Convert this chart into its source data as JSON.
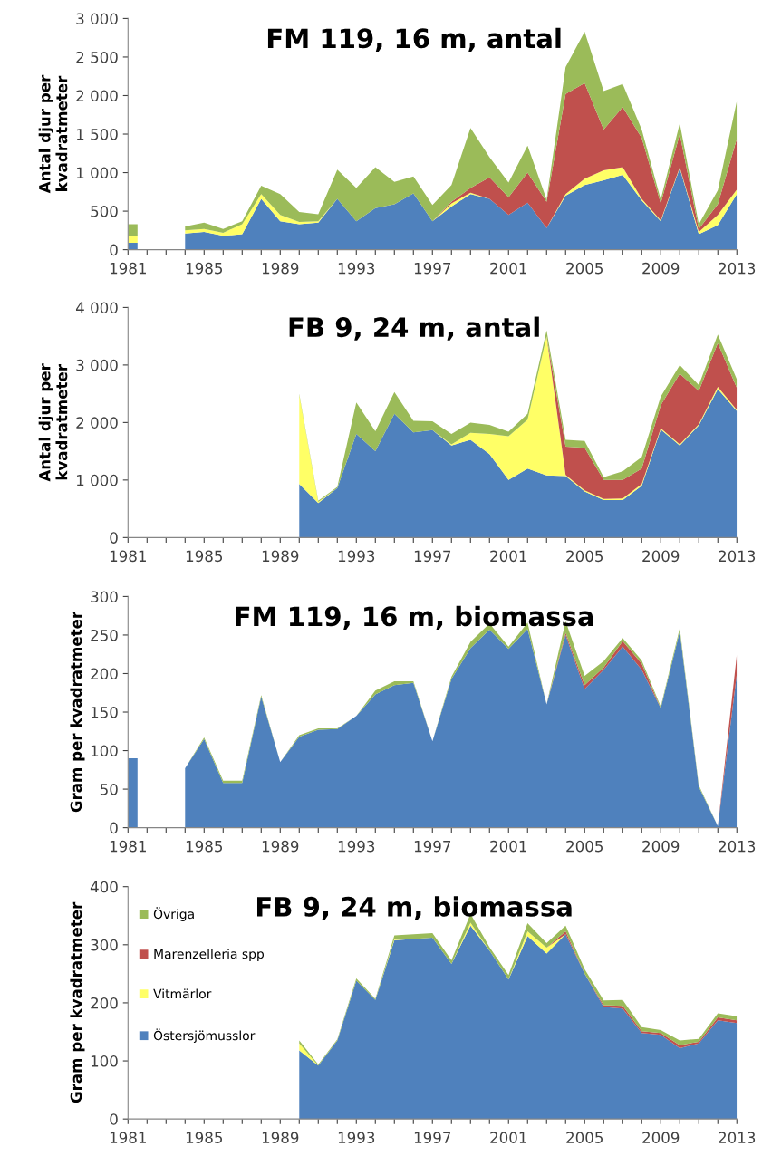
{
  "chart_data": [
    {
      "type": "area",
      "stacked": true,
      "title": "FM 119, 16 m, antal",
      "ylabel": "Antal djur per\nkvadratmeter",
      "grid": false,
      "legend": false,
      "x": [
        1981,
        1982,
        1983,
        1984,
        1985,
        1986,
        1987,
        1988,
        1989,
        1990,
        1991,
        1992,
        1993,
        1994,
        1995,
        1996,
        1997,
        1998,
        1999,
        2000,
        2001,
        2002,
        2003,
        2004,
        2005,
        2006,
        2007,
        2008,
        2009,
        2010,
        2011,
        2012,
        2013
      ],
      "xlim": [
        1981,
        2013
      ],
      "xticks": [
        1981,
        {
          "value": 1982,
          "label": null
        },
        {
          "value": 1983,
          "label": null
        },
        {
          "value": 1984,
          "label": null
        },
        1985,
        {
          "value": 1986,
          "label": null
        },
        {
          "value": 1987,
          "label": null
        },
        {
          "value": 1988,
          "label": null
        },
        1989,
        {
          "value": 1990,
          "label": null
        },
        {
          "value": 1991,
          "label": null
        },
        {
          "value": 1992,
          "label": null
        },
        1993,
        {
          "value": 1994,
          "label": null
        },
        {
          "value": 1995,
          "label": null
        },
        {
          "value": 1996,
          "label": null
        },
        1997,
        {
          "value": 1998,
          "label": null
        },
        {
          "value": 1999,
          "label": null
        },
        {
          "value": 2000,
          "label": null
        },
        2001,
        {
          "value": 2002,
          "label": null
        },
        {
          "value": 2003,
          "label": null
        },
        {
          "value": 2004,
          "label": null
        },
        2005,
        {
          "value": 2006,
          "label": null
        },
        {
          "value": 2007,
          "label": null
        },
        {
          "value": 2008,
          "label": null
        },
        2009,
        {
          "value": 2010,
          "label": null
        },
        {
          "value": 2011,
          "label": null
        },
        {
          "value": 2012,
          "label": null
        },
        2013
      ],
      "ylim": [
        0,
        3000
      ],
      "yticks": [
        0,
        500,
        {
          "value": 1000,
          "label": "1 000"
        },
        {
          "value": 1500,
          "label": "1 500"
        },
        {
          "value": 2000,
          "label": "2 000"
        },
        {
          "value": 2500,
          "label": "2 500"
        },
        {
          "value": 3000,
          "label": "3 000"
        }
      ],
      "series": [
        {
          "color": "#4f81bd",
          "values": [
            90,
            null,
            null,
            210,
            230,
            180,
            200,
            660,
            370,
            330,
            350,
            660,
            370,
            540,
            590,
            730,
            370,
            560,
            720,
            660,
            450,
            610,
            280,
            700,
            840,
            900,
            970,
            640,
            370,
            1060,
            200,
            320,
            720
          ]
        },
        {
          "color": "#ffff66",
          "values": [
            90,
            null,
            null,
            40,
            40,
            40,
            130,
            60,
            80,
            30,
            20,
            0,
            0,
            0,
            0,
            0,
            0,
            40,
            20,
            0,
            0,
            0,
            0,
            20,
            80,
            130,
            100,
            20,
            10,
            10,
            30,
            130,
            60
          ]
        },
        {
          "color": "#c0504d",
          "values": [
            null,
            null,
            null,
            0,
            0,
            0,
            0,
            0,
            0,
            0,
            0,
            0,
            0,
            0,
            0,
            0,
            0,
            20,
            60,
            280,
            230,
            390,
            340,
            1300,
            1240,
            530,
            780,
            790,
            220,
            430,
            40,
            140,
            660
          ]
        },
        {
          "color": "#9bbb59",
          "values": [
            150,
            null,
            null,
            50,
            80,
            50,
            40,
            110,
            270,
            130,
            90,
            380,
            430,
            530,
            290,
            220,
            210,
            220,
            780,
            260,
            190,
            350,
            30,
            350,
            670,
            500,
            300,
            110,
            50,
            140,
            60,
            180,
            490
          ]
        }
      ]
    },
    {
      "type": "area",
      "stacked": true,
      "title": "FB 9, 24 m, antal",
      "ylabel": "Antal djur per\nkvadratmeter",
      "grid": false,
      "legend": false,
      "x": [
        1990,
        1991,
        1992,
        1993,
        1994,
        1995,
        1996,
        1997,
        1998,
        1999,
        2000,
        2001,
        2002,
        2003,
        2004,
        2005,
        2006,
        2007,
        2008,
        2009,
        2010,
        2011,
        2012,
        2013
      ],
      "xlim": [
        1981,
        2013
      ],
      "xticks": [
        1981,
        {
          "value": 1982,
          "label": null
        },
        {
          "value": 1983,
          "label": null
        },
        {
          "value": 1984,
          "label": null
        },
        1985,
        {
          "value": 1986,
          "label": null
        },
        {
          "value": 1987,
          "label": null
        },
        {
          "value": 1988,
          "label": null
        },
        1989,
        {
          "value": 1990,
          "label": null
        },
        {
          "value": 1991,
          "label": null
        },
        {
          "value": 1992,
          "label": null
        },
        1993,
        {
          "value": 1994,
          "label": null
        },
        {
          "value": 1995,
          "label": null
        },
        {
          "value": 1996,
          "label": null
        },
        1997,
        {
          "value": 1998,
          "label": null
        },
        {
          "value": 1999,
          "label": null
        },
        {
          "value": 2000,
          "label": null
        },
        2001,
        {
          "value": 2002,
          "label": null
        },
        {
          "value": 2003,
          "label": null
        },
        {
          "value": 2004,
          "label": null
        },
        2005,
        {
          "value": 2006,
          "label": null
        },
        {
          "value": 2007,
          "label": null
        },
        {
          "value": 2008,
          "label": null
        },
        2009,
        {
          "value": 2010,
          "label": null
        },
        {
          "value": 2011,
          "label": null
        },
        {
          "value": 2012,
          "label": null
        },
        2013
      ],
      "ylim": [
        0,
        4000
      ],
      "yticks": [
        0,
        {
          "value": 1000,
          "label": "1 000"
        },
        {
          "value": 2000,
          "label": "2 000"
        },
        {
          "value": 3000,
          "label": "3 000"
        },
        {
          "value": 4000,
          "label": "4 000"
        }
      ],
      "series": [
        {
          "color": "#4f81bd",
          "values": [
            930,
            600,
            860,
            1800,
            1500,
            2150,
            1830,
            1870,
            1600,
            1700,
            1450,
            1000,
            1200,
            1080,
            1070,
            800,
            650,
            650,
            900,
            1880,
            1600,
            1950,
            2580,
            2200
          ]
        },
        {
          "color": "#ffff66",
          "values": [
            1550,
            20,
            0,
            0,
            0,
            0,
            0,
            0,
            20,
            120,
            350,
            760,
            850,
            2420,
            20,
            20,
            20,
            30,
            30,
            20,
            20,
            20,
            40,
            20
          ]
        },
        {
          "color": "#c0504d",
          "values": [
            null,
            null,
            null,
            null,
            null,
            null,
            null,
            null,
            null,
            null,
            null,
            null,
            null,
            0,
            490,
            740,
            330,
            320,
            270,
            400,
            1230,
            580,
            760,
            380
          ]
        },
        {
          "color": "#9bbb59",
          "values": [
            20,
            20,
            20,
            550,
            350,
            380,
            200,
            150,
            180,
            180,
            160,
            80,
            100,
            100,
            120,
            120,
            50,
            150,
            200,
            150,
            150,
            100,
            150,
            150
          ]
        }
      ]
    },
    {
      "type": "area",
      "stacked": true,
      "title": "FM 119, 16 m, biomassa",
      "ylabel": "Gram per kvadratmeter",
      "grid": false,
      "legend": false,
      "x": [
        1981,
        1982,
        1983,
        1984,
        1985,
        1986,
        1987,
        1988,
        1989,
        1990,
        1991,
        1992,
        1993,
        1994,
        1995,
        1996,
        1997,
        1998,
        1999,
        2000,
        2001,
        2002,
        2003,
        2004,
        2005,
        2006,
        2007,
        2008,
        2009,
        2010,
        2011,
        2012,
        2013
      ],
      "xlim": [
        1981,
        2013
      ],
      "xticks": [
        1981,
        {
          "value": 1982,
          "label": null
        },
        {
          "value": 1983,
          "label": null
        },
        {
          "value": 1984,
          "label": null
        },
        1985,
        {
          "value": 1986,
          "label": null
        },
        {
          "value": 1987,
          "label": null
        },
        {
          "value": 1988,
          "label": null
        },
        1989,
        {
          "value": 1990,
          "label": null
        },
        {
          "value": 1991,
          "label": null
        },
        {
          "value": 1992,
          "label": null
        },
        1993,
        {
          "value": 1994,
          "label": null
        },
        {
          "value": 1995,
          "label": null
        },
        {
          "value": 1996,
          "label": null
        },
        1997,
        {
          "value": 1998,
          "label": null
        },
        {
          "value": 1999,
          "label": null
        },
        {
          "value": 2000,
          "label": null
        },
        2001,
        {
          "value": 2002,
          "label": null
        },
        {
          "value": 2003,
          "label": null
        },
        {
          "value": 2004,
          "label": null
        },
        2005,
        {
          "value": 2006,
          "label": null
        },
        {
          "value": 2007,
          "label": null
        },
        {
          "value": 2008,
          "label": null
        },
        2009,
        {
          "value": 2010,
          "label": null
        },
        {
          "value": 2011,
          "label": null
        },
        {
          "value": 2012,
          "label": null
        },
        2013
      ],
      "ylim": [
        0,
        300
      ],
      "yticks": [
        0,
        50,
        100,
        150,
        200,
        250,
        300
      ],
      "series": [
        {
          "color": "#4f81bd",
          "values": [
            90,
            null,
            null,
            77,
            115,
            58,
            58,
            170,
            85,
            118,
            127,
            128,
            145,
            173,
            185,
            188,
            112,
            193,
            233,
            257,
            232,
            258,
            160,
            250,
            180,
            205,
            235,
            205,
            155,
            255,
            53,
            2,
            200
          ]
        },
        {
          "color": "#c0504d",
          "values": [
            null,
            null,
            null,
            null,
            null,
            null,
            null,
            null,
            null,
            null,
            null,
            null,
            null,
            null,
            null,
            null,
            null,
            null,
            null,
            null,
            null,
            null,
            0,
            3,
            5,
            3,
            7,
            8,
            0,
            null,
            null,
            0,
            25
          ]
        },
        {
          "color": "#9bbb59",
          "values": [
            null,
            null,
            null,
            0,
            2,
            3,
            3,
            2,
            0,
            2,
            2,
            1,
            0,
            5,
            5,
            2,
            0,
            3,
            8,
            8,
            3,
            8,
            0,
            15,
            12,
            8,
            4,
            4,
            2,
            4,
            2,
            0,
            0
          ]
        }
      ]
    },
    {
      "type": "area",
      "stacked": true,
      "title": "FB 9, 24 m, biomassa",
      "ylabel": "Gram per kvadratmeter",
      "grid": false,
      "legend": "left",
      "x": [
        1990,
        1991,
        1992,
        1993,
        1994,
        1995,
        1996,
        1997,
        1998,
        1999,
        2000,
        2001,
        2002,
        2003,
        2004,
        2005,
        2006,
        2007,
        2008,
        2009,
        2010,
        2011,
        2012,
        2013
      ],
      "xlim": [
        1981,
        2013
      ],
      "xticks": [
        1981,
        {
          "value": 1982,
          "label": null
        },
        {
          "value": 1983,
          "label": null
        },
        {
          "value": 1984,
          "label": null
        },
        1985,
        {
          "value": 1986,
          "label": null
        },
        {
          "value": 1987,
          "label": null
        },
        {
          "value": 1988,
          "label": null
        },
        1989,
        {
          "value": 1990,
          "label": null
        },
        {
          "value": 1991,
          "label": null
        },
        {
          "value": 1992,
          "label": null
        },
        1993,
        {
          "value": 1994,
          "label": null
        },
        {
          "value": 1995,
          "label": null
        },
        {
          "value": 1996,
          "label": null
        },
        1997,
        {
          "value": 1998,
          "label": null
        },
        {
          "value": 1999,
          "label": null
        },
        {
          "value": 2000,
          "label": null
        },
        2001,
        {
          "value": 2002,
          "label": null
        },
        {
          "value": 2003,
          "label": null
        },
        {
          "value": 2004,
          "label": null
        },
        2005,
        {
          "value": 2006,
          "label": null
        },
        {
          "value": 2007,
          "label": null
        },
        {
          "value": 2008,
          "label": null
        },
        2009,
        {
          "value": 2010,
          "label": null
        },
        {
          "value": 2011,
          "label": null
        },
        {
          "value": 2012,
          "label": null
        },
        2013
      ],
      "ylim": [
        0,
        400
      ],
      "yticks": [
        0,
        100,
        200,
        300,
        400
      ],
      "series": [
        {
          "name": "Östersjömusslor",
          "color": "#4f81bd",
          "values": [
            118,
            92,
            135,
            238,
            205,
            308,
            310,
            312,
            267,
            333,
            290,
            240,
            315,
            285,
            318,
            250,
            193,
            190,
            148,
            145,
            122,
            130,
            170,
            165
          ]
        },
        {
          "name": "Vitmärlor",
          "color": "#ffff66",
          "values": [
            12,
            0,
            0,
            0,
            0,
            2,
            0,
            0,
            0,
            5,
            0,
            0,
            8,
            10,
            0,
            0,
            0,
            0,
            0,
            0,
            0,
            0,
            0,
            0
          ]
        },
        {
          "name": "Marenzelleria spp",
          "color": "#c0504d",
          "values": [
            null,
            null,
            null,
            null,
            null,
            null,
            null,
            null,
            null,
            null,
            null,
            null,
            null,
            0,
            5,
            0,
            3,
            5,
            3,
            3,
            5,
            3,
            5,
            5
          ]
        },
        {
          "name": "Övriga",
          "color": "#9bbb59",
          "values": [
            5,
            2,
            2,
            4,
            2,
            6,
            8,
            8,
            6,
            15,
            6,
            8,
            14,
            8,
            10,
            8,
            8,
            10,
            7,
            5,
            8,
            5,
            7,
            7
          ]
        }
      ]
    }
  ]
}
